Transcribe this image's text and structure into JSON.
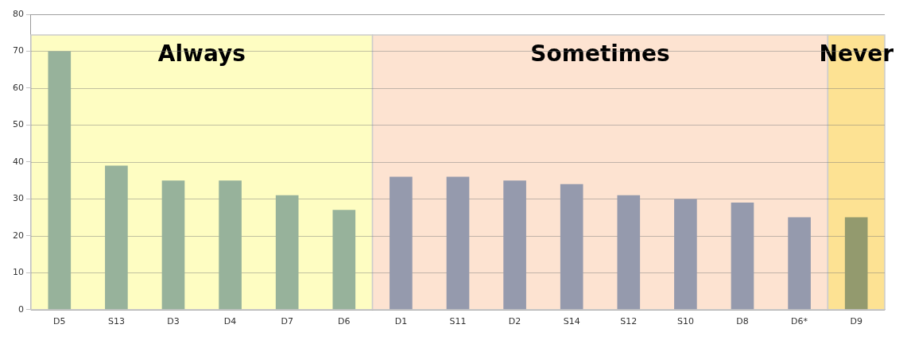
{
  "chart_data": {
    "type": "bar",
    "categories": [
      "D5",
      "S13",
      "D3",
      "D4",
      "D7",
      "D6",
      "D1",
      "S11",
      "D2",
      "S14",
      "S12",
      "S10",
      "D8",
      "D6*",
      "D9"
    ],
    "values": [
      70,
      39,
      35,
      35,
      31,
      27,
      36,
      36,
      35,
      34,
      31,
      30,
      29,
      25,
      25
    ],
    "colors": [
      "#97b29b",
      "#97b29b",
      "#97b29b",
      "#97b29b",
      "#97b29b",
      "#97b29b",
      "#959aad",
      "#959aad",
      "#959aad",
      "#959aad",
      "#959aad",
      "#959aad",
      "#959aad",
      "#959aad",
      "#939a6e"
    ],
    "ylim": [
      0,
      80
    ],
    "yticks": [
      0,
      10,
      20,
      30,
      40,
      50,
      60,
      70,
      80
    ],
    "grid": "y",
    "bands": [
      {
        "axis": "x",
        "from": "D5",
        "to": "D6",
        "label": "Always",
        "color": "#fefdc2"
      },
      {
        "axis": "x",
        "from": "D1",
        "to": "D6*",
        "label": "Sometimes",
        "color": "#fde3d1"
      },
      {
        "axis": "x",
        "from": "D9",
        "to": "D9",
        "label": "Never",
        "color": "#fde293"
      }
    ]
  }
}
